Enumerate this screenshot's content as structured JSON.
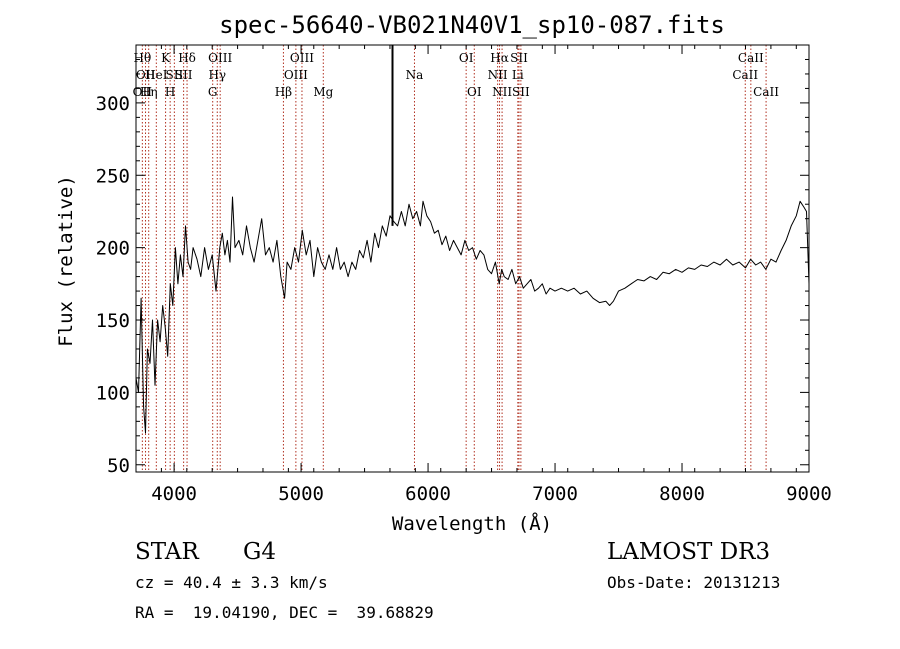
{
  "chart_data": {
    "type": "line",
    "title": "spec-56640-VB021N40V1_sp10-087.fits",
    "xlabel": "Wavelength (Å)",
    "ylabel": "Flux (relative)",
    "xlim": [
      3700,
      9000
    ],
    "ylim": [
      45,
      340
    ],
    "xticks": [
      4000,
      5000,
      6000,
      7000,
      8000,
      9000
    ],
    "yticks": [
      50,
      100,
      150,
      200,
      250,
      300
    ],
    "grid": false,
    "line_color": "#000000",
    "marker_color": "#b03020",
    "spectrum": [
      [
        3700,
        110
      ],
      [
        3720,
        100
      ],
      [
        3740,
        165
      ],
      [
        3760,
        90
      ],
      [
        3775,
        72
      ],
      [
        3790,
        130
      ],
      [
        3810,
        120
      ],
      [
        3830,
        150
      ],
      [
        3850,
        105
      ],
      [
        3870,
        150
      ],
      [
        3890,
        135
      ],
      [
        3910,
        160
      ],
      [
        3930,
        145
      ],
      [
        3950,
        125
      ],
      [
        3970,
        175
      ],
      [
        3990,
        160
      ],
      [
        4010,
        200
      ],
      [
        4030,
        175
      ],
      [
        4050,
        195
      ],
      [
        4070,
        180
      ],
      [
        4090,
        215
      ],
      [
        4110,
        190
      ],
      [
        4130,
        185
      ],
      [
        4150,
        200
      ],
      [
        4180,
        192
      ],
      [
        4210,
        180
      ],
      [
        4240,
        200
      ],
      [
        4270,
        185
      ],
      [
        4300,
        195
      ],
      [
        4330,
        170
      ],
      [
        4360,
        200
      ],
      [
        4380,
        210
      ],
      [
        4400,
        195
      ],
      [
        4420,
        205
      ],
      [
        4440,
        190
      ],
      [
        4460,
        235
      ],
      [
        4480,
        200
      ],
      [
        4510,
        205
      ],
      [
        4540,
        195
      ],
      [
        4570,
        215
      ],
      [
        4600,
        200
      ],
      [
        4630,
        190
      ],
      [
        4660,
        205
      ],
      [
        4690,
        220
      ],
      [
        4720,
        195
      ],
      [
        4750,
        200
      ],
      [
        4780,
        190
      ],
      [
        4810,
        205
      ],
      [
        4840,
        180
      ],
      [
        4870,
        165
      ],
      [
        4890,
        190
      ],
      [
        4920,
        185
      ],
      [
        4950,
        200
      ],
      [
        4980,
        190
      ],
      [
        5010,
        212
      ],
      [
        5040,
        195
      ],
      [
        5070,
        205
      ],
      [
        5100,
        180
      ],
      [
        5130,
        200
      ],
      [
        5160,
        190
      ],
      [
        5190,
        185
      ],
      [
        5220,
        195
      ],
      [
        5250,
        185
      ],
      [
        5280,
        200
      ],
      [
        5310,
        185
      ],
      [
        5340,
        190
      ],
      [
        5370,
        180
      ],
      [
        5400,
        190
      ],
      [
        5430,
        185
      ],
      [
        5460,
        198
      ],
      [
        5490,
        193
      ],
      [
        5520,
        205
      ],
      [
        5550,
        190
      ],
      [
        5580,
        210
      ],
      [
        5610,
        200
      ],
      [
        5640,
        215
      ],
      [
        5670,
        208
      ],
      [
        5700,
        222
      ],
      [
        5730,
        218
      ],
      [
        5760,
        215
      ],
      [
        5790,
        225
      ],
      [
        5820,
        215
      ],
      [
        5850,
        230
      ],
      [
        5880,
        220
      ],
      [
        5910,
        225
      ],
      [
        5940,
        215
      ],
      [
        5960,
        232
      ],
      [
        5990,
        222
      ],
      [
        6020,
        218
      ],
      [
        6050,
        210
      ],
      [
        6080,
        212
      ],
      [
        6110,
        202
      ],
      [
        6140,
        208
      ],
      [
        6170,
        198
      ],
      [
        6200,
        205
      ],
      [
        6230,
        200
      ],
      [
        6260,
        195
      ],
      [
        6290,
        205
      ],
      [
        6320,
        198
      ],
      [
        6350,
        200
      ],
      [
        6380,
        192
      ],
      [
        6410,
        198
      ],
      [
        6440,
        195
      ],
      [
        6470,
        185
      ],
      [
        6500,
        182
      ],
      [
        6530,
        190
      ],
      [
        6560,
        175
      ],
      [
        6580,
        185
      ],
      [
        6600,
        180
      ],
      [
        6630,
        178
      ],
      [
        6660,
        185
      ],
      [
        6690,
        175
      ],
      [
        6720,
        180
      ],
      [
        6750,
        172
      ],
      [
        6780,
        175
      ],
      [
        6810,
        178
      ],
      [
        6840,
        170
      ],
      [
        6870,
        172
      ],
      [
        6900,
        175
      ],
      [
        6930,
        168
      ],
      [
        6960,
        172
      ],
      [
        7000,
        170
      ],
      [
        7050,
        172
      ],
      [
        7100,
        170
      ],
      [
        7150,
        172
      ],
      [
        7200,
        168
      ],
      [
        7250,
        170
      ],
      [
        7300,
        165
      ],
      [
        7350,
        162
      ],
      [
        7400,
        163
      ],
      [
        7430,
        160
      ],
      [
        7460,
        163
      ],
      [
        7500,
        170
      ],
      [
        7550,
        172
      ],
      [
        7600,
        175
      ],
      [
        7650,
        178
      ],
      [
        7700,
        177
      ],
      [
        7750,
        180
      ],
      [
        7800,
        178
      ],
      [
        7850,
        183
      ],
      [
        7900,
        182
      ],
      [
        7950,
        185
      ],
      [
        8000,
        183
      ],
      [
        8050,
        186
      ],
      [
        8100,
        185
      ],
      [
        8150,
        188
      ],
      [
        8200,
        187
      ],
      [
        8250,
        190
      ],
      [
        8300,
        188
      ],
      [
        8350,
        192
      ],
      [
        8400,
        188
      ],
      [
        8450,
        190
      ],
      [
        8500,
        186
      ],
      [
        8540,
        192
      ],
      [
        8580,
        188
      ],
      [
        8620,
        190
      ],
      [
        8660,
        185
      ],
      [
        8700,
        192
      ],
      [
        8740,
        190
      ],
      [
        8780,
        198
      ],
      [
        8820,
        205
      ],
      [
        8860,
        215
      ],
      [
        8900,
        222
      ],
      [
        8930,
        232
      ],
      [
        8960,
        228
      ],
      [
        8980,
        225
      ],
      [
        9000,
        175
      ]
    ],
    "spike": {
      "x": 5720,
      "top": 340,
      "bottom": 215
    },
    "line_markers": [
      {
        "x": 3750,
        "labels": [
          {
            "row": 0,
            "text": "Hθ"
          },
          {
            "row": 2,
            "text": "OII"
          }
        ]
      },
      {
        "x": 3775,
        "labels": [
          {
            "row": 1,
            "text": "OII"
          }
        ]
      },
      {
        "x": 3800,
        "labels": [
          {
            "row": 2,
            "text": "Hη"
          }
        ]
      },
      {
        "x": 3860,
        "labels": [
          {
            "row": 1,
            "text": "HeI"
          }
        ]
      },
      {
        "x": 3933,
        "labels": [
          {
            "row": 0,
            "text": "K"
          }
        ]
      },
      {
        "x": 3969,
        "labels": [
          {
            "row": 2,
            "text": "H"
          }
        ]
      },
      {
        "x": 4002,
        "labels": [
          {
            "row": 1,
            "text": "SII"
          }
        ]
      },
      {
        "x": 4075,
        "labels": [
          {
            "row": 1,
            "text": "SII"
          }
        ]
      },
      {
        "x": 4102,
        "labels": [
          {
            "row": 0,
            "text": "Hδ"
          }
        ]
      },
      {
        "x": 4304,
        "labels": [
          {
            "row": 2,
            "text": "G"
          }
        ]
      },
      {
        "x": 4340,
        "labels": [
          {
            "row": 1,
            "text": "Hγ"
          }
        ]
      },
      {
        "x": 4363,
        "labels": [
          {
            "row": 0,
            "text": "OIII"
          }
        ]
      },
      {
        "x": 4861,
        "labels": [
          {
            "row": 2,
            "text": "Hβ"
          }
        ]
      },
      {
        "x": 4959,
        "labels": [
          {
            "row": 1,
            "text": "OIII"
          }
        ]
      },
      {
        "x": 5007,
        "labels": [
          {
            "row": 0,
            "text": "OIII"
          }
        ]
      },
      {
        "x": 5175,
        "labels": [
          {
            "row": 2,
            "text": "Mg"
          }
        ]
      },
      {
        "x": 5893,
        "labels": [
          {
            "row": 1,
            "text": "Na"
          }
        ]
      },
      {
        "x": 6300,
        "labels": [
          {
            "row": 0,
            "text": "OI"
          }
        ]
      },
      {
        "x": 6364,
        "labels": [
          {
            "row": 2,
            "text": "OI"
          }
        ]
      },
      {
        "x": 6548,
        "labels": [
          {
            "row": 1,
            "text": "NII"
          }
        ]
      },
      {
        "x": 6563,
        "labels": [
          {
            "row": 0,
            "text": "Hα"
          }
        ]
      },
      {
        "x": 6583,
        "labels": [
          {
            "row": 2,
            "text": "NII"
          }
        ]
      },
      {
        "x": 6707,
        "labels": [
          {
            "row": 1,
            "text": "Li"
          }
        ]
      },
      {
        "x": 6716,
        "labels": [
          {
            "row": 0,
            "text": "SII"
          }
        ]
      },
      {
        "x": 6731,
        "labels": [
          {
            "row": 2,
            "text": "SII"
          }
        ]
      },
      {
        "x": 8498,
        "labels": [
          {
            "row": 1,
            "text": "CaII"
          }
        ]
      },
      {
        "x": 8542,
        "labels": [
          {
            "row": 0,
            "text": "CaII"
          }
        ]
      },
      {
        "x": 8662,
        "labels": [
          {
            "row": 2,
            "text": "CaII"
          }
        ]
      }
    ]
  },
  "info": {
    "class": "STAR",
    "subclass": "G4",
    "cz": "cz = 40.4 ± 3.3 km/s",
    "radec": "RA =  19.04190, DEC =  39.68829",
    "survey": "LAMOST DR3",
    "obs_date": "Obs-Date: 20131213"
  }
}
